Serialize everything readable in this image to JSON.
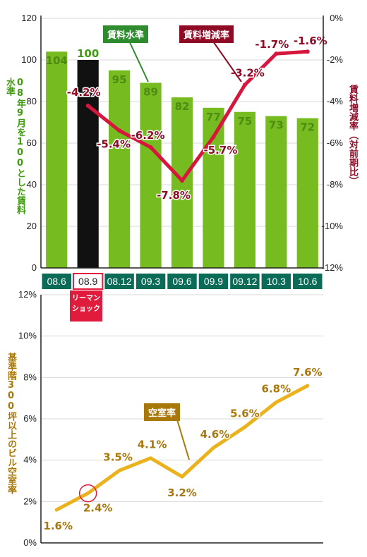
{
  "colors": {
    "bar_green": "#76bb1f",
    "bar_highlight": "#111111",
    "line_red": "#d7163d",
    "callout_red": "#8f0b25",
    "callout_green": "#2e8b2e",
    "x_box_green": "#0a6b57",
    "lehman_red": "#e11b3c",
    "line_gold": "#eab21d",
    "callout_gold": "#a8780b",
    "gold_text": "#a8780b",
    "red_text": "#8f0b25",
    "green_text": "#3f9c0d"
  },
  "chart_data": [
    {
      "type": "bar",
      "title": "",
      "categories": [
        "08.6",
        "08.9",
        "08.12",
        "09.3",
        "09.6",
        "09.9",
        "09.12",
        "10.3",
        "10.6"
      ],
      "highlight_category": "08.9",
      "highlight_note": "リーマンショック",
      "ylabel": "08年9月を100とした賃料水準",
      "ylim": [
        0,
        120
      ],
      "yticks": [
        "0",
        "20",
        "40",
        "60",
        "80",
        "100",
        "120"
      ],
      "bar_series": {
        "name": "賃料水準",
        "values": [
          104,
          100,
          95,
          89,
          82,
          77,
          75,
          73,
          72
        ]
      },
      "y2label": "賃料増減率（対前期比）",
      "y2lim": [
        -12,
        0
      ],
      "y2ticks": [
        "0%",
        "-2%",
        "-4%",
        "-6%",
        "-8%",
        "-10%",
        "-12%"
      ],
      "line_series": {
        "name": "賃料増減率",
        "x": [
          "08.9",
          "08.12",
          "09.3",
          "09.6",
          "09.9",
          "09.12",
          "10.3",
          "10.6"
        ],
        "values": [
          -4.2,
          -5.4,
          -6.2,
          -7.8,
          -5.7,
          -3.2,
          -1.7,
          -1.6
        ],
        "labels": [
          "-4.2%",
          "-5.4%",
          "-6.2%",
          "-7.8%",
          "-5.7%",
          "-3.2%",
          "-1.7%",
          "-1.6%"
        ]
      },
      "legend": "callouts"
    },
    {
      "type": "line",
      "title": "",
      "categories": [
        "08.6",
        "08.9",
        "08.12",
        "09.3",
        "09.6",
        "09.9",
        "09.12",
        "10.3",
        "10.6"
      ],
      "ylabel": "基準階300坪以上のビル空室率",
      "ylim": [
        0,
        12
      ],
      "yticks": [
        "0%",
        "2%",
        "4%",
        "6%",
        "8%",
        "10%",
        "12%"
      ],
      "series": [
        {
          "name": "空室率",
          "values": [
            1.6,
            2.4,
            3.5,
            4.1,
            3.2,
            4.6,
            5.6,
            6.8,
            7.6
          ],
          "labels": [
            "1.6%",
            "2.4%",
            "3.5%",
            "4.1%",
            "3.2%",
            "4.6%",
            "5.6%",
            "6.8%",
            "7.6%"
          ]
        }
      ],
      "highlight_category": "08.9"
    }
  ]
}
